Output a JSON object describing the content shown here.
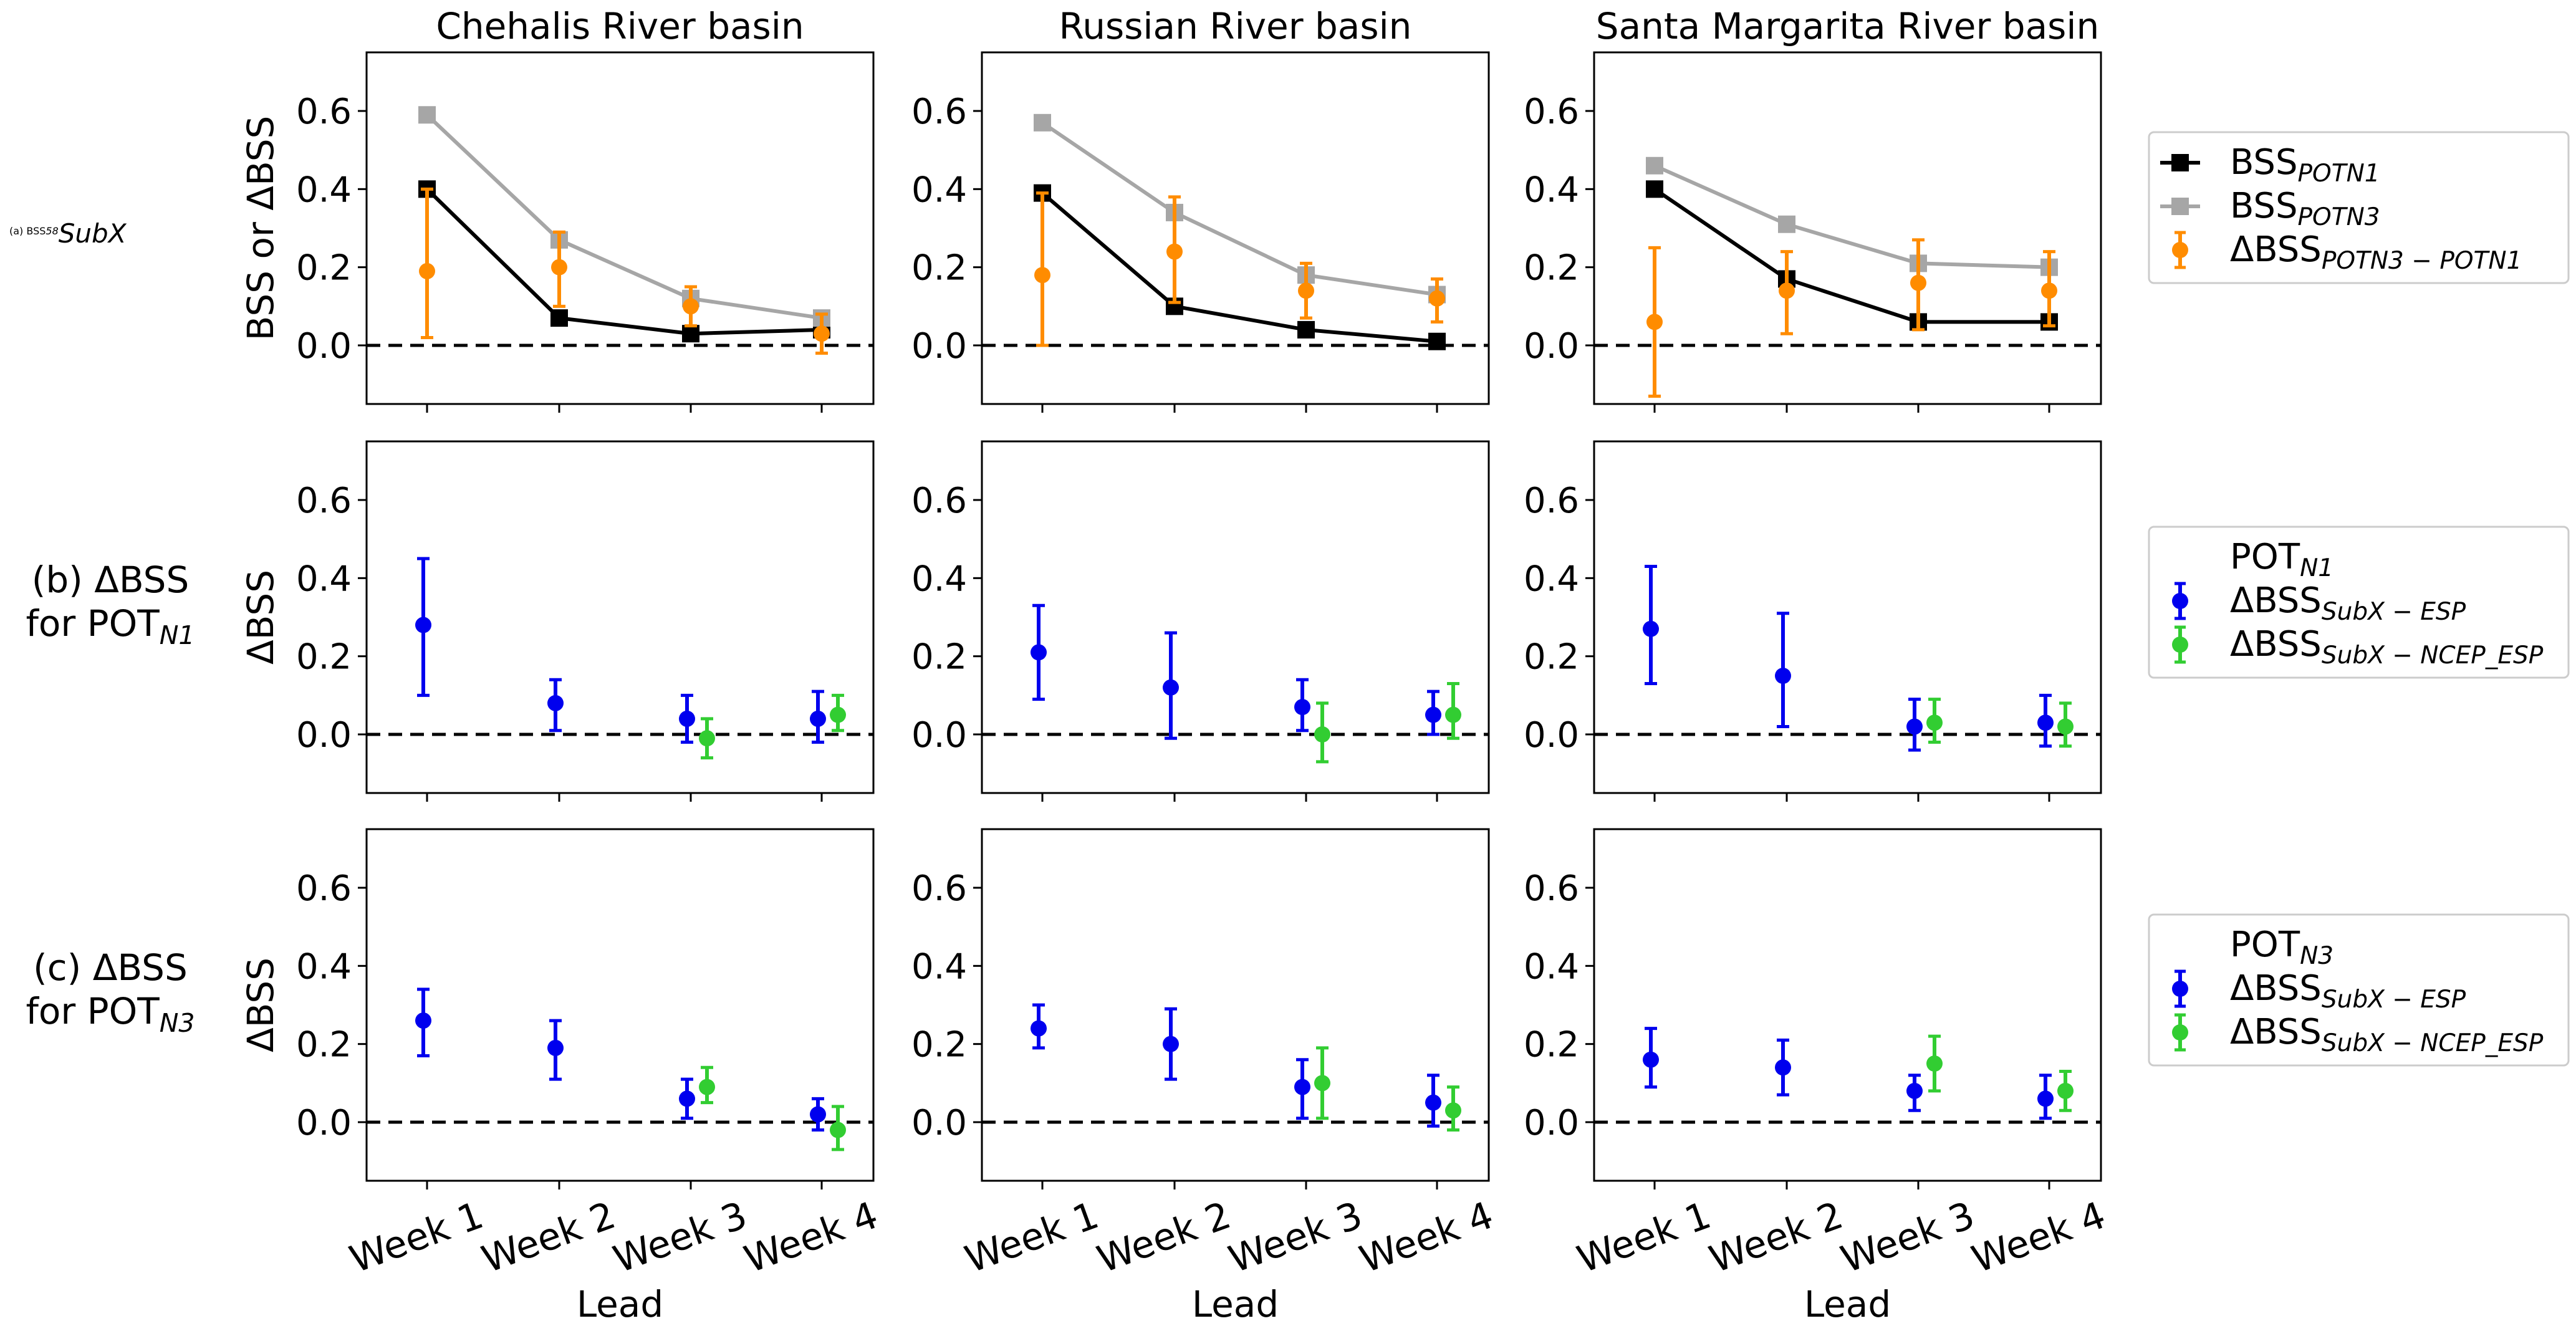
{
  "figure": {
    "columns": [
      "Chehalis River basin",
      "Russian River basin",
      "Santa Margarita River basin"
    ],
    "xlabel": "Lead",
    "row_labels": [
      {
        "line1": "(a) BSS",
        "sub": "SubX",
        "line2": "",
        "sub2": ""
      },
      {
        "line1": "(b) ΔBSS",
        "sub": "",
        "line2": "for POT",
        "sub2": "N1"
      },
      {
        "line1": "(c) ΔBSS",
        "sub": "",
        "line2": "for POT",
        "sub2": "N3"
      }
    ],
    "ylabels": [
      "BSS or ΔBSS",
      "ΔBSS",
      "ΔBSS"
    ],
    "legends": [
      {
        "title": "",
        "title_sub": "",
        "entries": [
          {
            "base": "BSS",
            "sub": "POTN1",
            "marker": "square-line",
            "color": "#000000"
          },
          {
            "base": "BSS",
            "sub": "POTN3",
            "marker": "square-line",
            "color": "#a6a6a6"
          },
          {
            "base": "ΔBSS",
            "sub": "POTN3 − POTN1",
            "marker": "errorbar",
            "color": "#ff8c00"
          }
        ]
      },
      {
        "title": "POT",
        "title_sub": "N1",
        "entries": [
          {
            "base": "ΔBSS",
            "sub": "SubX − ESP",
            "marker": "errorbar",
            "color": "#0000ee"
          },
          {
            "base": "ΔBSS",
            "sub": "SubX − NCEP_ESP",
            "marker": "errorbar",
            "color": "#32cd32"
          }
        ]
      },
      {
        "title": "POT",
        "title_sub": "N3",
        "entries": [
          {
            "base": "ΔBSS",
            "sub": "SubX − ESP",
            "marker": "errorbar",
            "color": "#0000ee"
          },
          {
            "base": "ΔBSS",
            "sub": "SubX − NCEP_ESP",
            "marker": "errorbar",
            "color": "#32cd32"
          }
        ]
      }
    ]
  },
  "chart_data": [
    {
      "type": "line",
      "row": 0,
      "col": 0,
      "title": "Chehalis River basin",
      "categories": [
        "Week 1",
        "Week 2",
        "Week 3",
        "Week 4"
      ],
      "ylim": [
        -0.15,
        0.75
      ],
      "yticks": [
        0.0,
        0.2,
        0.4,
        0.6
      ],
      "series": [
        {
          "name": "BSS POTN1",
          "kind": "line",
          "values": [
            0.4,
            0.07,
            0.03,
            0.04
          ]
        },
        {
          "name": "BSS POTN3",
          "kind": "line",
          "values": [
            0.59,
            0.27,
            0.12,
            0.07
          ]
        },
        {
          "name": "ΔBSS POTN3 − POTN1",
          "kind": "errorbar",
          "values": [
            0.19,
            0.2,
            0.1,
            0.03
          ],
          "lower": [
            0.02,
            0.1,
            0.05,
            -0.02
          ],
          "upper": [
            0.4,
            0.29,
            0.15,
            0.08
          ]
        }
      ]
    },
    {
      "type": "line",
      "row": 0,
      "col": 1,
      "title": "Russian River basin",
      "categories": [
        "Week 1",
        "Week 2",
        "Week 3",
        "Week 4"
      ],
      "ylim": [
        -0.15,
        0.75
      ],
      "yticks": [
        0.0,
        0.2,
        0.4,
        0.6
      ],
      "series": [
        {
          "name": "BSS POTN1",
          "kind": "line",
          "values": [
            0.39,
            0.1,
            0.04,
            0.01
          ]
        },
        {
          "name": "BSS POTN3",
          "kind": "line",
          "values": [
            0.57,
            0.34,
            0.18,
            0.13
          ]
        },
        {
          "name": "ΔBSS POTN3 − POTN1",
          "kind": "errorbar",
          "values": [
            0.18,
            0.24,
            0.14,
            0.12
          ],
          "lower": [
            0.0,
            0.11,
            0.07,
            0.06
          ],
          "upper": [
            0.39,
            0.38,
            0.21,
            0.17
          ]
        }
      ]
    },
    {
      "type": "line",
      "row": 0,
      "col": 2,
      "title": "Santa Margarita River basin",
      "categories": [
        "Week 1",
        "Week 2",
        "Week 3",
        "Week 4"
      ],
      "ylim": [
        -0.15,
        0.75
      ],
      "yticks": [
        0.0,
        0.2,
        0.4,
        0.6
      ],
      "series": [
        {
          "name": "BSS POTN1",
          "kind": "line",
          "values": [
            0.4,
            0.17,
            0.06,
            0.06
          ]
        },
        {
          "name": "BSS POTN3",
          "kind": "line",
          "values": [
            0.46,
            0.31,
            0.21,
            0.2
          ]
        },
        {
          "name": "ΔBSS POTN3 − POTN1",
          "kind": "errorbar",
          "values": [
            0.06,
            0.14,
            0.16,
            0.14
          ],
          "lower": [
            -0.13,
            0.03,
            0.04,
            0.05
          ],
          "upper": [
            0.25,
            0.24,
            0.27,
            0.24
          ]
        }
      ]
    },
    {
      "type": "scatter",
      "row": 1,
      "col": 0,
      "categories": [
        "Week 1",
        "Week 2",
        "Week 3",
        "Week 4"
      ],
      "ylim": [
        -0.15,
        0.75
      ],
      "yticks": [
        0.0,
        0.2,
        0.4,
        0.6
      ],
      "series": [
        {
          "name": "ΔBSS SubX − ESP",
          "kind": "errorbar",
          "values": [
            0.28,
            0.08,
            0.04,
            0.04
          ],
          "lower": [
            0.1,
            0.01,
            -0.02,
            -0.02
          ],
          "upper": [
            0.45,
            0.14,
            0.1,
            0.11
          ]
        },
        {
          "name": "ΔBSS SubX − NCEP_ESP",
          "kind": "errorbar",
          "values": [
            null,
            null,
            -0.01,
            0.05
          ],
          "lower": [
            null,
            null,
            -0.06,
            0.01
          ],
          "upper": [
            null,
            null,
            0.04,
            0.1
          ]
        }
      ]
    },
    {
      "type": "scatter",
      "row": 1,
      "col": 1,
      "categories": [
        "Week 1",
        "Week 2",
        "Week 3",
        "Week 4"
      ],
      "ylim": [
        -0.15,
        0.75
      ],
      "yticks": [
        0.0,
        0.2,
        0.4,
        0.6
      ],
      "series": [
        {
          "name": "ΔBSS SubX − ESP",
          "kind": "errorbar",
          "values": [
            0.21,
            0.12,
            0.07,
            0.05
          ],
          "lower": [
            0.09,
            -0.01,
            0.01,
            0.0
          ],
          "upper": [
            0.33,
            0.26,
            0.14,
            0.11
          ]
        },
        {
          "name": "ΔBSS SubX − NCEP_ESP",
          "kind": "errorbar",
          "values": [
            null,
            null,
            0.0,
            0.05
          ],
          "lower": [
            null,
            null,
            -0.07,
            -0.01
          ],
          "upper": [
            null,
            null,
            0.08,
            0.13
          ]
        }
      ]
    },
    {
      "type": "scatter",
      "row": 1,
      "col": 2,
      "categories": [
        "Week 1",
        "Week 2",
        "Week 3",
        "Week 4"
      ],
      "ylim": [
        -0.15,
        0.75
      ],
      "yticks": [
        0.0,
        0.2,
        0.4,
        0.6
      ],
      "series": [
        {
          "name": "ΔBSS SubX − ESP",
          "kind": "errorbar",
          "values": [
            0.27,
            0.15,
            0.02,
            0.03
          ],
          "lower": [
            0.13,
            0.02,
            -0.04,
            -0.03
          ],
          "upper": [
            0.43,
            0.31,
            0.09,
            0.1
          ]
        },
        {
          "name": "ΔBSS SubX − NCEP_ESP",
          "kind": "errorbar",
          "values": [
            null,
            null,
            0.03,
            0.02
          ],
          "lower": [
            null,
            null,
            -0.02,
            -0.03
          ],
          "upper": [
            null,
            null,
            0.09,
            0.08
          ]
        }
      ]
    },
    {
      "type": "scatter",
      "row": 2,
      "col": 0,
      "categories": [
        "Week 1",
        "Week 2",
        "Week 3",
        "Week 4"
      ],
      "ylim": [
        -0.15,
        0.75
      ],
      "yticks": [
        0.0,
        0.2,
        0.4,
        0.6
      ],
      "series": [
        {
          "name": "ΔBSS SubX − ESP",
          "kind": "errorbar",
          "values": [
            0.26,
            0.19,
            0.06,
            0.02
          ],
          "lower": [
            0.17,
            0.11,
            0.01,
            -0.02
          ],
          "upper": [
            0.34,
            0.26,
            0.11,
            0.06
          ]
        },
        {
          "name": "ΔBSS SubX − NCEP_ESP",
          "kind": "errorbar",
          "values": [
            null,
            null,
            0.09,
            -0.02
          ],
          "lower": [
            null,
            null,
            0.05,
            -0.07
          ],
          "upper": [
            null,
            null,
            0.14,
            0.04
          ]
        }
      ]
    },
    {
      "type": "scatter",
      "row": 2,
      "col": 1,
      "categories": [
        "Week 1",
        "Week 2",
        "Week 3",
        "Week 4"
      ],
      "ylim": [
        -0.15,
        0.75
      ],
      "yticks": [
        0.0,
        0.2,
        0.4,
        0.6
      ],
      "series": [
        {
          "name": "ΔBSS SubX − ESP",
          "kind": "errorbar",
          "values": [
            0.24,
            0.2,
            0.09,
            0.05
          ],
          "lower": [
            0.19,
            0.11,
            0.01,
            -0.01
          ],
          "upper": [
            0.3,
            0.29,
            0.16,
            0.12
          ]
        },
        {
          "name": "ΔBSS SubX − NCEP_ESP",
          "kind": "errorbar",
          "values": [
            null,
            null,
            0.1,
            0.03
          ],
          "lower": [
            null,
            null,
            0.01,
            -0.02
          ],
          "upper": [
            null,
            null,
            0.19,
            0.09
          ]
        }
      ]
    },
    {
      "type": "scatter",
      "row": 2,
      "col": 2,
      "categories": [
        "Week 1",
        "Week 2",
        "Week 3",
        "Week 4"
      ],
      "ylim": [
        -0.15,
        0.75
      ],
      "yticks": [
        0.0,
        0.2,
        0.4,
        0.6
      ],
      "series": [
        {
          "name": "ΔBSS SubX − ESP",
          "kind": "errorbar",
          "values": [
            0.16,
            0.14,
            0.08,
            0.06
          ],
          "lower": [
            0.09,
            0.07,
            0.03,
            0.01
          ],
          "upper": [
            0.24,
            0.21,
            0.12,
            0.12
          ]
        },
        {
          "name": "ΔBSS SubX − NCEP_ESP",
          "kind": "errorbar",
          "values": [
            null,
            null,
            0.15,
            0.08
          ],
          "lower": [
            null,
            null,
            0.08,
            0.03
          ],
          "upper": [
            null,
            null,
            0.22,
            0.13
          ]
        }
      ]
    }
  ]
}
